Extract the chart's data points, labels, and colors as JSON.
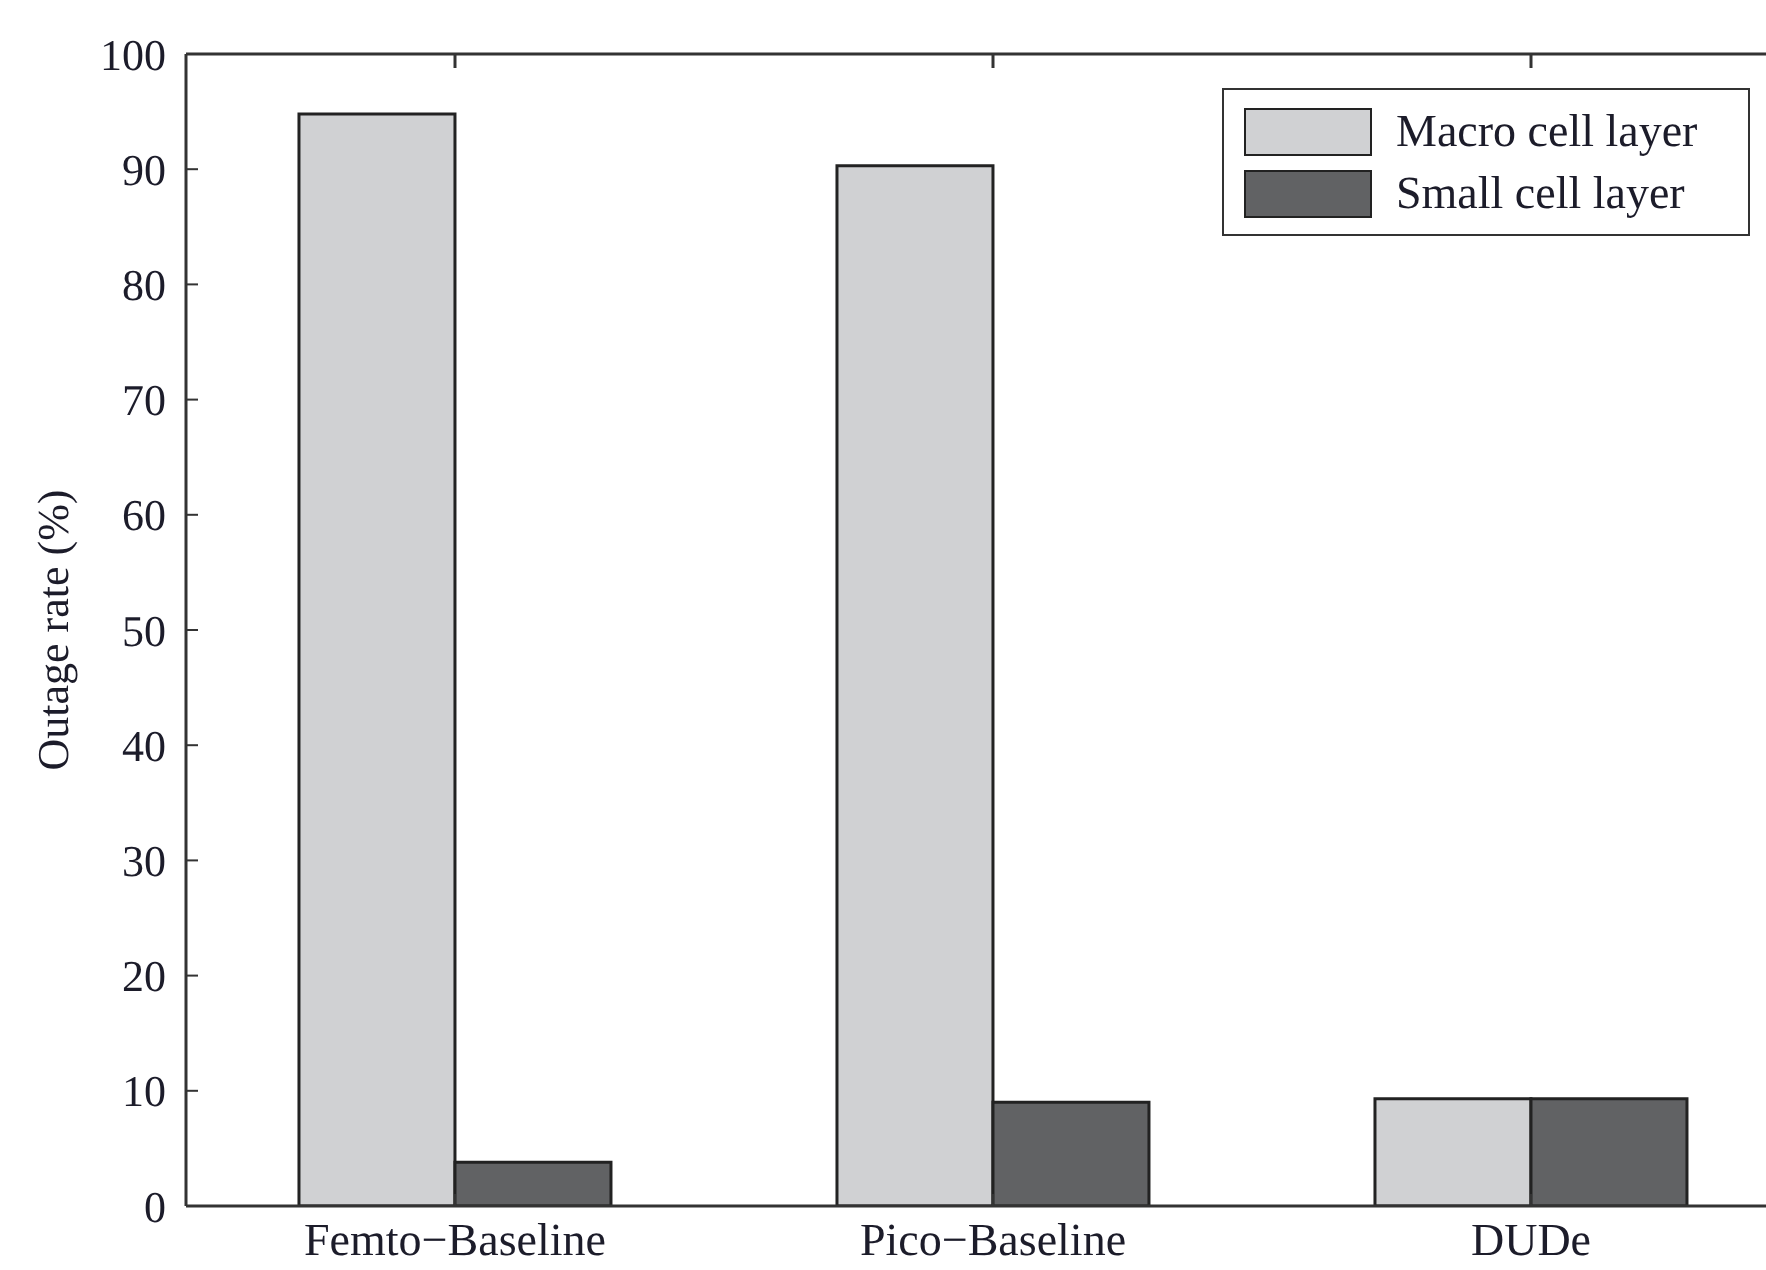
{
  "chart_data": {
    "type": "bar",
    "ylabel": "Outage rate (%)",
    "categories": [
      "Femto−Baseline",
      "Pico−Baseline",
      "DUDe"
    ],
    "series": [
      {
        "name": "Macro cell layer",
        "color": "#d0d1d3",
        "values": [
          94.8,
          90.3,
          9.3
        ]
      },
      {
        "name": "Small cell layer",
        "color": "#616264",
        "values": [
          3.8,
          9.0,
          9.3
        ]
      }
    ],
    "ylim": [
      0,
      100
    ],
    "yticks": [
      0,
      10,
      20,
      30,
      40,
      50,
      60,
      70,
      80,
      90,
      100
    ],
    "legend": "top right"
  }
}
